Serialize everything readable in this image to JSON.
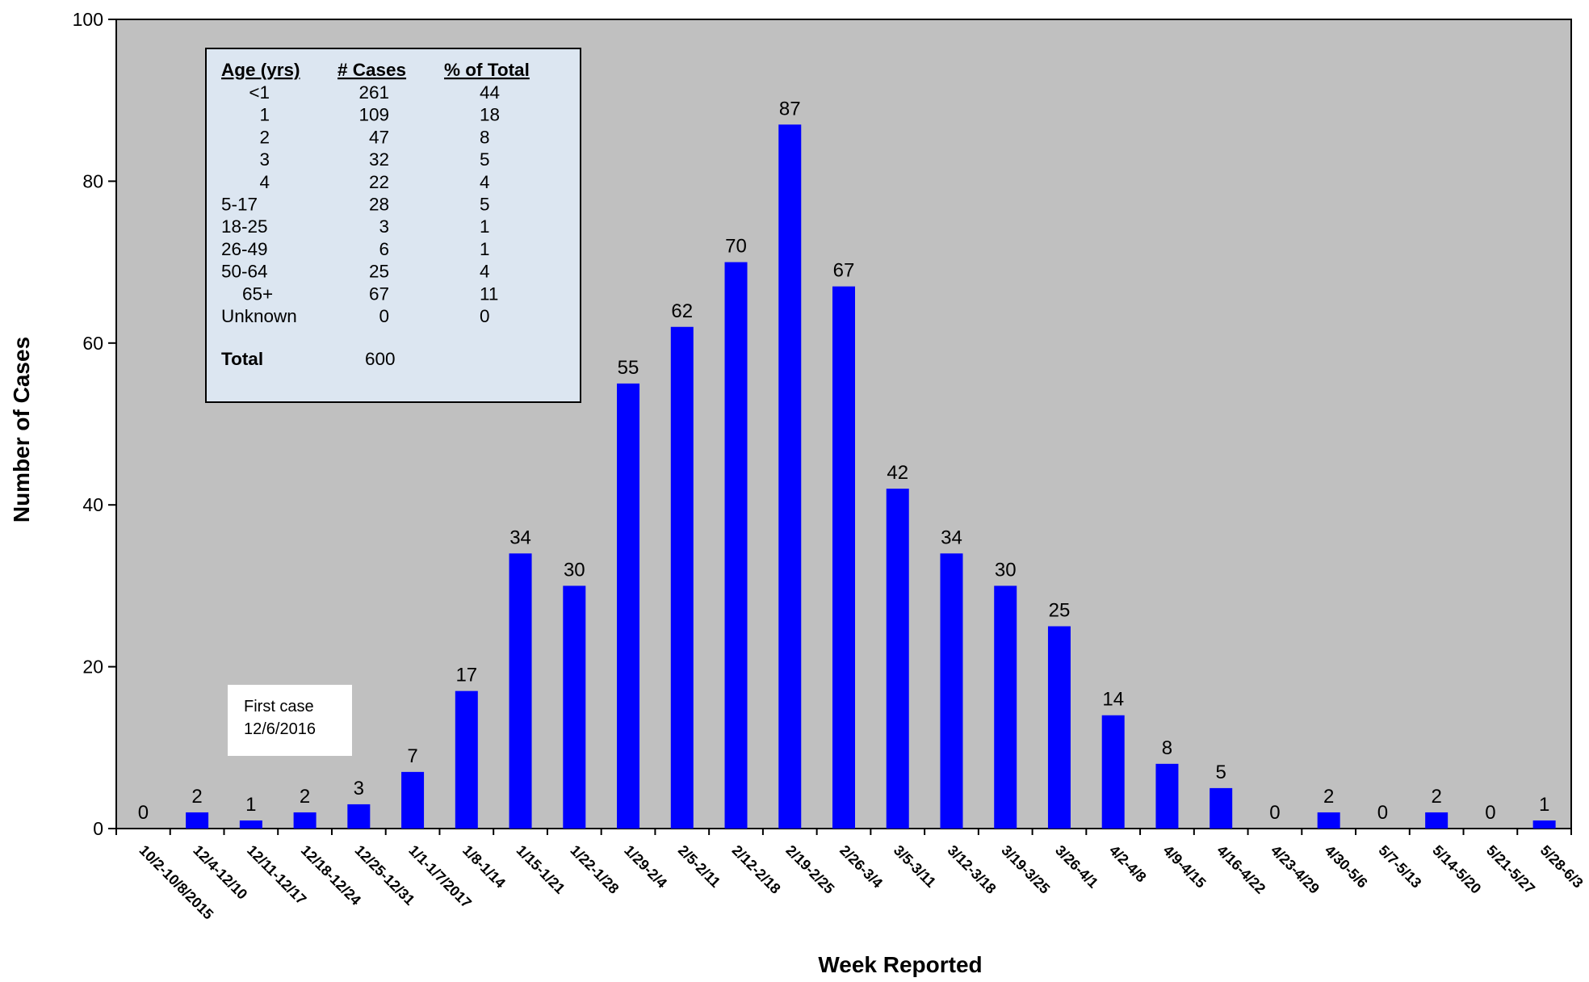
{
  "colors": {
    "plot_bg": "#c0c0c0",
    "bar": "#0000ff",
    "table_bg": "#dce6f1",
    "annotation_bg": "#ffffff"
  },
  "chart_data": {
    "type": "bar",
    "xlabel": "Week Reported",
    "ylabel": "Number of Cases",
    "ylim": [
      0,
      100
    ],
    "yticks": [
      0,
      20,
      40,
      60,
      80,
      100
    ],
    "grid": false,
    "categories": [
      "10/2-10/8/2015",
      "12/4-12/10",
      "12/11-12/17",
      "12/18-12/24",
      "12/25-12/31",
      "1/1-1/7/2017",
      "1/8-1/14",
      "1/15-1/21",
      "1/22-1/28",
      "1/29-2/4",
      "2/5-2/11",
      "2/12-2/18",
      "2/19-2/25",
      "2/26-3/4",
      "3/5-3/11",
      "3/12-3/18",
      "3/19-3/25",
      "3/26-4/1",
      "4/2-4/8",
      "4/9-4/15",
      "4/16-4/22",
      "4/23-4/29",
      "4/30-5/6",
      "5/7-5/13",
      "5/14-5/20",
      "5/21-5/27",
      "5/28-6/3"
    ],
    "values": [
      0,
      2,
      1,
      2,
      3,
      7,
      17,
      34,
      30,
      55,
      62,
      70,
      87,
      67,
      42,
      34,
      30,
      25,
      14,
      8,
      5,
      0,
      2,
      0,
      2,
      0,
      1
    ]
  },
  "age_table": {
    "headers": [
      "Age (yrs)",
      "# Cases",
      "% of Total"
    ],
    "rows": [
      [
        "<1",
        "261",
        "44"
      ],
      [
        "1",
        "109",
        "18"
      ],
      [
        "2",
        "47",
        "8"
      ],
      [
        "3",
        "32",
        "5"
      ],
      [
        "4",
        "22",
        "4"
      ],
      [
        "5-17",
        "28",
        "5"
      ],
      [
        "18-25",
        "3",
        "1"
      ],
      [
        "26-49",
        "6",
        "1"
      ],
      [
        "50-64",
        "25",
        "4"
      ],
      [
        "65+",
        "67",
        "11"
      ],
      [
        "Unknown",
        "0",
        "0"
      ]
    ],
    "total_label": "Total",
    "total_value": "600"
  },
  "annotation": {
    "line1": "First case",
    "line2": "12/6/2016"
  }
}
